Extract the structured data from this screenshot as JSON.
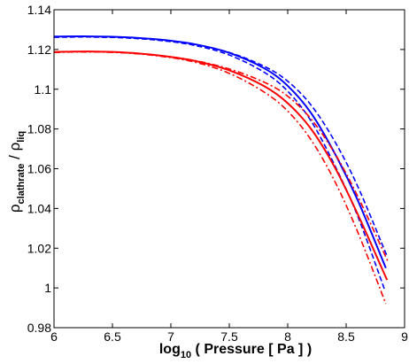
{
  "chart_data": {
    "type": "line",
    "xlabel": {
      "prefix": "log",
      "sub": "10",
      "rest": " ( Pressure [ Pa ] )"
    },
    "ylabel": {
      "rho1": "ρ",
      "sub1": "clathrate",
      "mid": " / ",
      "rho2": "ρ",
      "sub2": "liq"
    },
    "xlim": [
      6,
      9
    ],
    "ylim": [
      0.98,
      1.14
    ],
    "xticks": [
      6,
      6.5,
      7,
      7.5,
      8,
      8.5,
      9
    ],
    "xtick_labels": [
      "6",
      "6.5",
      "7",
      "7.5",
      "8",
      "8.5",
      "9"
    ],
    "yticks": [
      0.98,
      1.0,
      1.02,
      1.04,
      1.06,
      1.08,
      1.1,
      1.12,
      1.14
    ],
    "ytick_labels": [
      "0.98",
      "1",
      "1.02",
      "1.04",
      "1.06",
      "1.08",
      "1.1",
      "1.12",
      "1.14"
    ],
    "colors": {
      "blue": "#0000ff",
      "red": "#ff0000",
      "axes": "#000000"
    },
    "series": [
      {
        "color": "#0000ff",
        "style": "solid",
        "x": [
          6.0,
          6.3,
          6.6,
          6.9,
          7.2,
          7.5,
          7.8,
          8.0,
          8.2,
          8.4,
          8.6,
          8.84
        ],
        "y": [
          1.1265,
          1.1266,
          1.1262,
          1.125,
          1.1227,
          1.1183,
          1.1105,
          1.1017,
          1.088,
          1.068,
          1.044,
          1.01
        ]
      },
      {
        "color": "#0000ff",
        "style": "dashed",
        "x": [
          6.0,
          6.3,
          6.6,
          6.9,
          7.2,
          7.5,
          7.8,
          8.0,
          8.2,
          8.4,
          8.6,
          8.85
        ],
        "y": [
          1.1262,
          1.1263,
          1.1259,
          1.1247,
          1.1225,
          1.1185,
          1.1115,
          1.104,
          1.092,
          1.074,
          1.051,
          1.016
        ]
      },
      {
        "color": "#0000ff",
        "style": "dashed",
        "x": [
          6.0,
          6.3,
          6.6,
          6.9,
          7.2,
          7.5,
          7.8,
          8.0,
          8.2,
          8.4,
          8.6,
          8.83
        ],
        "y": [
          1.1262,
          1.1263,
          1.1259,
          1.1246,
          1.1221,
          1.1172,
          1.1085,
          1.099,
          1.084,
          1.062,
          1.036,
          0.999
        ]
      },
      {
        "color": "#ff0000",
        "style": "solid",
        "x": [
          6.0,
          6.3,
          6.6,
          6.9,
          7.2,
          7.5,
          7.8,
          8.0,
          8.2,
          8.4,
          8.6,
          8.85
        ],
        "y": [
          1.1188,
          1.119,
          1.1185,
          1.117,
          1.1143,
          1.1095,
          1.1015,
          1.093,
          1.08,
          1.061,
          1.037,
          1.004
        ]
      },
      {
        "color": "#ff0000",
        "style": "dashdot",
        "x": [
          6.0,
          6.3,
          6.6,
          6.9,
          7.2,
          7.5,
          7.8,
          8.0,
          8.2,
          8.4,
          8.6,
          8.86
        ],
        "y": [
          1.1186,
          1.1188,
          1.1184,
          1.117,
          1.1145,
          1.1102,
          1.1035,
          1.0965,
          1.085,
          1.068,
          1.046,
          1.013
        ]
      },
      {
        "color": "#ff0000",
        "style": "dashdot",
        "x": [
          6.0,
          6.3,
          6.6,
          6.9,
          7.2,
          7.5,
          7.8,
          8.0,
          8.2,
          8.4,
          8.6,
          8.84
        ],
        "y": [
          1.1186,
          1.1188,
          1.1183,
          1.1167,
          1.1137,
          1.108,
          1.0985,
          1.089,
          1.0745,
          1.054,
          1.028,
          0.992
        ]
      }
    ]
  }
}
